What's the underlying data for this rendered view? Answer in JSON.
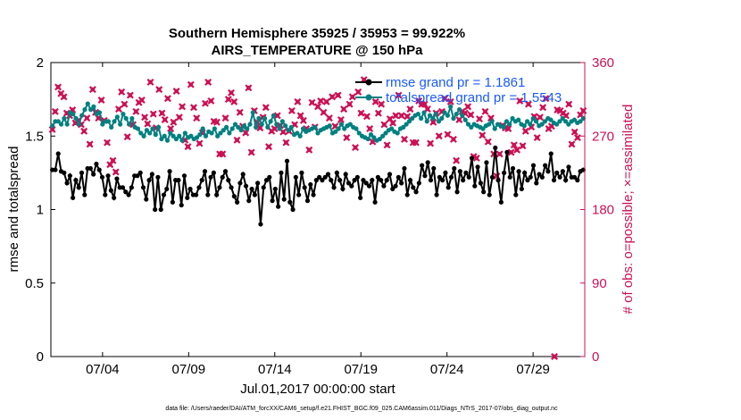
{
  "chart_data": {
    "type": "line",
    "title": "Southern Hemisphere 35925 / 35953 = 99.922%",
    "subtitle": "AIRS_TEMPERATURE @ 150 hPa",
    "xlabel": "Jul.01,2017 00:00:00 start",
    "ylabel": "rmse and totalspread",
    "ylabel_right": "# of obs: o=possible; ×=assimilated",
    "x_ticks": [
      "07/04",
      "07/09",
      "07/14",
      "07/19",
      "07/24",
      "07/29"
    ],
    "x_tick_days": [
      4,
      9,
      14,
      19,
      24,
      29
    ],
    "xlim": [
      1,
      32
    ],
    "ylim": [
      0,
      2
    ],
    "y_ticks": [
      "0",
      "0.5",
      "1",
      "1.5",
      "2"
    ],
    "y_tick_values": [
      0,
      0.5,
      1,
      1.5,
      2
    ],
    "ylim_right": [
      0,
      360
    ],
    "y_ticks_right": [
      "0",
      "90",
      "180",
      "270",
      "360"
    ],
    "y_tick_values_right": [
      0,
      90,
      180,
      270,
      360
    ],
    "legend_position": "top-right",
    "footnote": "data file: /Users/raeder/DAI/ATM_forcXX/CAM6_setup/f.e21.FHIST_BGC.f09_025.CAM6assim.011/Diags_NTrS_2017-07/obs_diag_output.nc",
    "series": [
      {
        "name": "rmse grand pr = 1.1861",
        "color": "#000000",
        "marker": "circle",
        "values": [
          1.27,
          1.27,
          1.38,
          1.26,
          1.25,
          1.18,
          1.23,
          1.08,
          1.2,
          1.15,
          1.25,
          1.1,
          1.28,
          1.28,
          1.24,
          1.31,
          1.27,
          1.22,
          1.1,
          1.23,
          1.13,
          1.08,
          1.21,
          1.15,
          1.15,
          1.12,
          1.1,
          1.15,
          1.23,
          1.23,
          1.25,
          1.15,
          1.07,
          1.2,
          1.24,
          1.0,
          1.22,
          1.0,
          1.1,
          1.14,
          1.26,
          1.05,
          1.2,
          1.2,
          1.03,
          1.23,
          1.08,
          1.14,
          1.1,
          1.1,
          1.15,
          1.2,
          1.26,
          1.1,
          1.22,
          1.25,
          1.1,
          1.15,
          1.22,
          1.26,
          1.2,
          1.15,
          1.09,
          1.05,
          1.18,
          1.24,
          1.16,
          1.06,
          1.14,
          1.1,
          1.18,
          0.9,
          1.15,
          1.2,
          1.22,
          1.06,
          1.14,
          1.02,
          1.25,
          1.07,
          1.33,
          1.05,
          1.0,
          1.22,
          1.1,
          1.25,
          1.15,
          1.06,
          1.17,
          1.1,
          1.2,
          1.22,
          1.2,
          1.22,
          1.24,
          1.2,
          1.15,
          1.25,
          1.2,
          1.14,
          1.24,
          1.18,
          1.16,
          1.2,
          1.22,
          1.08,
          1.2,
          1.18,
          1.16,
          1.2,
          1.05,
          1.22,
          1.2,
          1.16,
          1.2,
          1.24,
          1.14,
          1.16,
          1.22,
          1.18,
          1.28,
          1.1,
          1.2,
          1.15,
          1.12,
          1.18,
          1.3,
          1.23,
          1.32,
          1.2,
          1.28,
          1.1,
          1.22,
          1.2,
          1.25,
          1.15,
          1.22,
          1.28,
          1.12,
          1.26,
          1.2,
          1.25,
          1.22,
          1.35,
          1.16,
          1.29,
          1.18,
          1.12,
          1.32,
          1.1,
          1.22,
          1.42,
          1.2,
          1.05,
          1.25,
          1.39,
          1.22,
          1.28,
          1.1,
          1.26,
          1.14,
          1.25,
          1.2,
          1.22,
          1.3,
          1.18,
          1.24,
          1.22,
          1.3,
          1.26,
          1.38,
          1.2,
          1.25,
          1.22,
          1.26,
          1.2,
          1.29,
          1.22,
          1.22,
          1.2,
          1.26,
          1.27
        ]
      },
      {
        "name": "totalspread grand pr = 1.5543",
        "color": "#008080",
        "marker": "circle",
        "values": [
          1.57,
          1.6,
          1.6,
          1.58,
          1.62,
          1.58,
          1.66,
          1.65,
          1.62,
          1.58,
          1.64,
          1.68,
          1.72,
          1.68,
          1.7,
          1.65,
          1.66,
          1.58,
          1.6,
          1.6,
          1.56,
          1.6,
          1.63,
          1.58,
          1.65,
          1.62,
          1.58,
          1.62,
          1.56,
          1.55,
          1.52,
          1.5,
          1.54,
          1.52,
          1.55,
          1.51,
          1.56,
          1.48,
          1.5,
          1.47,
          1.52,
          1.5,
          1.48,
          1.5,
          1.47,
          1.52,
          1.49,
          1.5,
          1.48,
          1.49,
          1.51,
          1.55,
          1.5,
          1.53,
          1.52,
          1.55,
          1.5,
          1.52,
          1.54,
          1.56,
          1.52,
          1.55,
          1.58,
          1.56,
          1.54,
          1.57,
          1.55,
          1.58,
          1.66,
          1.56,
          1.62,
          1.58,
          1.62,
          1.56,
          1.6,
          1.64,
          1.58,
          1.55,
          1.6,
          1.57,
          1.54,
          1.56,
          1.51,
          1.52,
          1.5,
          1.55,
          1.53,
          1.54,
          1.55,
          1.56,
          1.52,
          1.54,
          1.55,
          1.56,
          1.57,
          1.52,
          1.53,
          1.55,
          1.58,
          1.55,
          1.57,
          1.58,
          1.56,
          1.55,
          1.52,
          1.5,
          1.49,
          1.48,
          1.51,
          1.49,
          1.47,
          1.48,
          1.5,
          1.52,
          1.54,
          1.55,
          1.53,
          1.52,
          1.55,
          1.56,
          1.58,
          1.6,
          1.62,
          1.64,
          1.65,
          1.62,
          1.66,
          1.6,
          1.64,
          1.62,
          1.65,
          1.6,
          1.62,
          1.66,
          1.64,
          1.7,
          1.62,
          1.65,
          1.68,
          1.64,
          1.61,
          1.58,
          1.56,
          1.58,
          1.57,
          1.56,
          1.55,
          1.57,
          1.58,
          1.6,
          1.55,
          1.58,
          1.57,
          1.56,
          1.6,
          1.58,
          1.62,
          1.6,
          1.61,
          1.58,
          1.57,
          1.6,
          1.58,
          1.62,
          1.6,
          1.57,
          1.58,
          1.6,
          1.62,
          1.61,
          1.59,
          1.58,
          1.6,
          1.62,
          1.6,
          1.58,
          1.6,
          1.61,
          1.59,
          1.6,
          1.62
        ]
      },
      {
        "name": "# of obs (possible/assimilated)",
        "axis": "right",
        "color": "#cc1155",
        "marker": "x",
        "values": [
          278,
          300,
          330,
          322,
          318,
          298,
          295,
          302,
          286,
          289,
          284,
          276,
          292,
          260,
          327,
          299,
          292,
          314,
          289,
          262,
          235,
          240,
          226,
          303,
          324,
          309,
          269,
          320,
          284,
          300,
          311,
          314,
          293,
          285,
          336,
          297,
          280,
          327,
          298,
          290,
          316,
          279,
          287,
          325,
          293,
          306,
          265,
          257,
          333,
          305,
          292,
          261,
          274,
          310,
          336,
          313,
          288,
          287,
          248,
          248,
          292,
          315,
          323,
          312,
          265,
          299,
          282,
          274,
          329,
          250,
          301,
          287,
          280,
          293,
          305,
          257,
          276,
          279,
          295,
          283,
          275,
          262,
          276,
          301,
          284,
          312,
          295,
          289,
          279,
          253,
          311,
          281,
          306,
          313,
          299,
          312,
          292,
          318,
          282,
          320,
          290,
          303,
          268,
          309,
          318,
          256,
          324,
          298,
          339,
          294,
          279,
          263,
          312,
          298,
          309,
          284,
          259,
          291,
          286,
          295,
          320,
          295,
          266,
          294,
          303,
          262,
          262,
          313,
          309,
          309,
          303,
          261,
          287,
          298,
          270,
          300,
          316,
          272,
          312,
          266,
          240,
          290,
          300,
          298,
          306,
          296,
          245,
          243,
          291,
          271,
          300,
          263,
          292,
          248,
          221,
          248,
          283,
          280,
          279,
          250,
          259,
          253,
          313,
          258,
          276,
          309,
          281,
          294,
          268,
          293,
          305,
          316,
          279,
          282,
          0,
          302,
          301,
          298,
          295,
          309,
          260,
          275,
          268,
          296,
          301
        ]
      }
    ]
  }
}
